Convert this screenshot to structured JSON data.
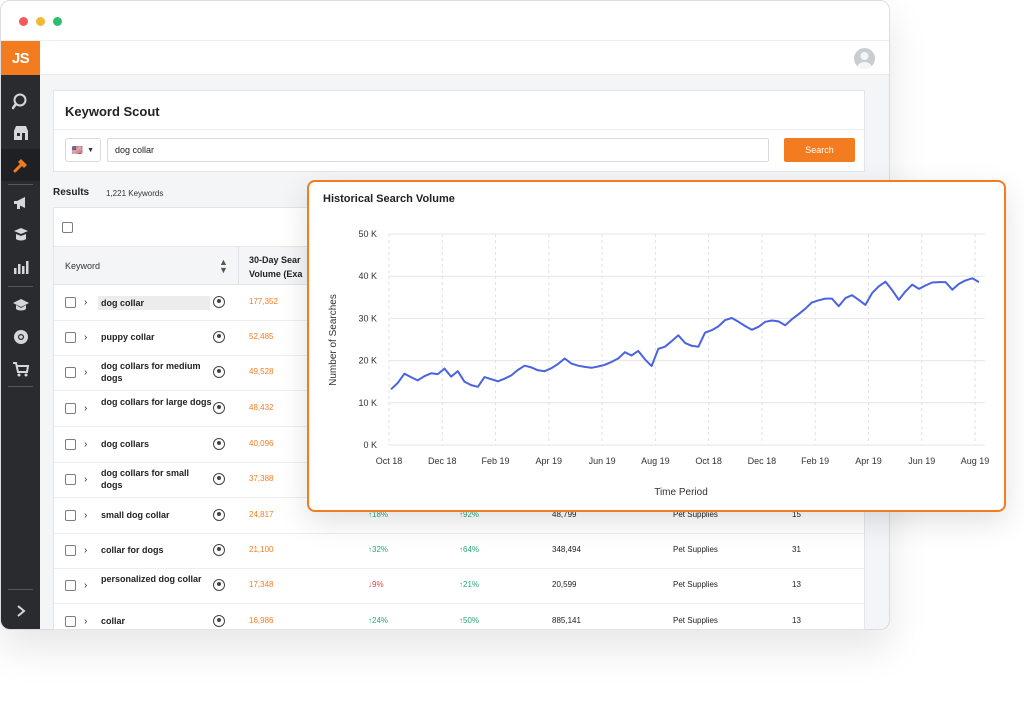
{
  "app": {
    "logo_text": "JS"
  },
  "sidebar": {
    "icons": [
      "search-icon",
      "store-icon",
      "tools-icon",
      "megaphone-icon",
      "academy-icon",
      "bar-chart-icon",
      "graduation-cap-icon",
      "chrome-icon",
      "cart-icon",
      "expand-icon"
    ],
    "active": "tools-icon"
  },
  "scout": {
    "title": "Keyword Scout",
    "country_flag": "🇺🇸",
    "search_value": "dog collar",
    "search_label": "Search"
  },
  "results": {
    "label": "Results",
    "count": "1,221 Keywords"
  },
  "table": {
    "headers": {
      "keyword": "Keyword",
      "volume_line1": "30-Day Sear",
      "volume_line2": "Volume (Exa"
    },
    "rows": [
      {
        "keyword": "dog collar",
        "volume": "177,352",
        "c1": "",
        "c2": "",
        "c3": "",
        "c4": "",
        "c5": "",
        "highlight": true
      },
      {
        "keyword": "puppy collar",
        "volume": "52,485",
        "c1": "",
        "c2": "",
        "c3": "",
        "c4": "",
        "c5": ""
      },
      {
        "keyword": "dog collars for medium dogs",
        "volume": "49,528",
        "c1": "",
        "c2": "",
        "c3": "",
        "c4": "",
        "c5": ""
      },
      {
        "keyword": "dog collars for large dogs",
        "volume": "48,432",
        "c1": "",
        "c2": "",
        "c3": "",
        "c4": "",
        "c5": ""
      },
      {
        "keyword": "dog collars",
        "volume": "40,096",
        "c1": "",
        "c2": "",
        "c3": "",
        "c4": "",
        "c5": ""
      },
      {
        "keyword": "dog collars for small dogs",
        "volume": "37,388",
        "c1": "",
        "c2": "",
        "c3": "",
        "c4": "",
        "c5": ""
      },
      {
        "keyword": "small dog collar",
        "volume": "24,817",
        "c1": "↑18%",
        "c2": "↑92%",
        "c3": "48,799",
        "c4": "Pet Supplies",
        "c5": "15"
      },
      {
        "keyword": "collar for dogs",
        "volume": "21,100",
        "c1": "↑32%",
        "c2": "↑64%",
        "c3": "348,494",
        "c4": "Pet Supplies",
        "c5": "31"
      },
      {
        "keyword": "personalized dog collar",
        "volume": "17,348",
        "c1": "↓9%",
        "c2": "↑21%",
        "c3": "20,599",
        "c4": "Pet Supplies",
        "c5": "13",
        "c1_down": true
      },
      {
        "keyword": "collar",
        "volume": "16,986",
        "c1": "↑24%",
        "c2": "↑50%",
        "c3": "885,141",
        "c4": "Pet Supplies",
        "c5": "13"
      }
    ]
  },
  "chart_data": {
    "type": "line",
    "title": "Historical Search Volume",
    "xlabel": "Time Period",
    "ylabel": "Number of Searches",
    "ylim": [
      0,
      50000
    ],
    "y_ticks": [
      "0 K",
      "10 K",
      "20  K",
      "30 K",
      "40 K",
      "50 K"
    ],
    "x_ticks": [
      "Oct 18",
      "Dec 18",
      "Feb 19",
      "Apr 19",
      "Jun 19",
      "Aug 19",
      "Oct 18",
      "Dec 18",
      "Feb 19",
      "Apr 19",
      "Jun 19",
      "Aug 19"
    ],
    "grid": true,
    "color": "#4b63e0",
    "series": [
      {
        "values": [
          13200,
          14700,
          16900,
          16100,
          15300,
          16300,
          17000,
          16800,
          18100,
          16200,
          17500,
          15000,
          14200,
          13800,
          16100,
          15600,
          15100,
          15700,
          16500,
          17800,
          18800,
          18400,
          17700,
          17500,
          18200,
          19200,
          20500,
          19300,
          18800,
          18500,
          18300,
          18600,
          19000,
          19700,
          20500,
          22000,
          21200,
          22300,
          20300,
          18700,
          22800,
          23300,
          24600,
          26000,
          24200,
          23500,
          23300,
          26600,
          27200,
          28100,
          29600,
          30100,
          29200,
          28200,
          27300,
          28000,
          29200,
          29500,
          29300,
          28400,
          29800,
          31000,
          32300,
          33800,
          34300,
          34700,
          34700,
          32900,
          34800,
          35500,
          34400,
          33200,
          36000,
          37600,
          38700,
          36700,
          34400,
          36400,
          38000,
          37000,
          37800,
          38500,
          38600,
          38600,
          36800,
          38200,
          39000,
          39500,
          38600
        ]
      }
    ]
  }
}
